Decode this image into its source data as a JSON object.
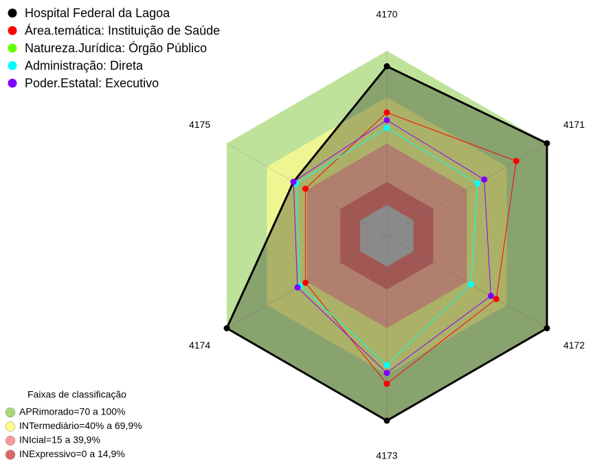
{
  "chart_data": {
    "type": "radar",
    "categories": [
      "4170",
      "4171",
      "4172",
      "4173",
      "4174",
      "4175"
    ],
    "rlim": [
      -20,
      100
    ],
    "series": [
      {
        "name": "Hospital Federal da Lagoa",
        "color": "#000000",
        "values": [
          90,
          100,
          100,
          100,
          100,
          50
        ]
      },
      {
        "name": "Área.temática: Instituição de Saúde",
        "color": "#ff0000",
        "values": [
          60,
          77,
          62,
          76,
          41,
          41
        ]
      },
      {
        "name": "Natureza.Jurídica: Órgão Público",
        "color": "#66ff00",
        "values": [
          50,
          48,
          43,
          64,
          45,
          48
        ]
      },
      {
        "name": "Administração: Direta",
        "color": "#00ffff",
        "values": [
          50,
          48,
          43,
          64,
          45,
          48
        ]
      },
      {
        "name": "Poder.Estatal: Executivo",
        "color": "#7f00ff",
        "values": [
          55,
          53,
          58,
          69,
          47,
          50
        ]
      }
    ],
    "bands_title": "Faixas de classificação",
    "bands": [
      {
        "label": "APRimorado=70 a 100%",
        "from": 70,
        "to": 100,
        "color": "#a8d878"
      },
      {
        "label": "INTermediário=40% a 69,9%",
        "from": 40,
        "to": 69.9,
        "color": "#fffb8c"
      },
      {
        "label": "INIcial=15 a 39,9%",
        "from": 15,
        "to": 39.9,
        "color": "#f59a9a"
      },
      {
        "label": "INExpressivo=0 a 14,9%",
        "from": 0,
        "to": 14.9,
        "color": "#d96a6a"
      }
    ]
  }
}
